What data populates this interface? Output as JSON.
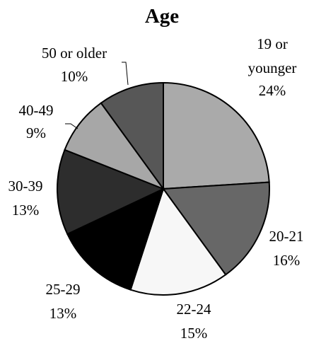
{
  "chart_data": {
    "type": "pie",
    "title": "Age",
    "categories": [
      "19 or younger",
      "20-21",
      "22-24",
      "25-29",
      "30-39",
      "40-49",
      "50 or older"
    ],
    "values": [
      24,
      16,
      15,
      13,
      13,
      9,
      10
    ],
    "value_labels": [
      "24%",
      "16%",
      "15%",
      "13%",
      "13%",
      "9%",
      "10%"
    ],
    "category_label_lines": [
      [
        "19 or",
        "younger"
      ],
      [
        "20-21"
      ],
      [
        "22-24"
      ],
      [
        "25-29"
      ],
      [
        "30-39"
      ],
      [
        "40-49"
      ],
      [
        "50 or older"
      ]
    ],
    "colors": [
      "#aaaaaa",
      "#676767",
      "#f7f7f7",
      "#000000",
      "#2d2d2d",
      "#a7a7a7",
      "#575757"
    ],
    "legend": "none"
  }
}
